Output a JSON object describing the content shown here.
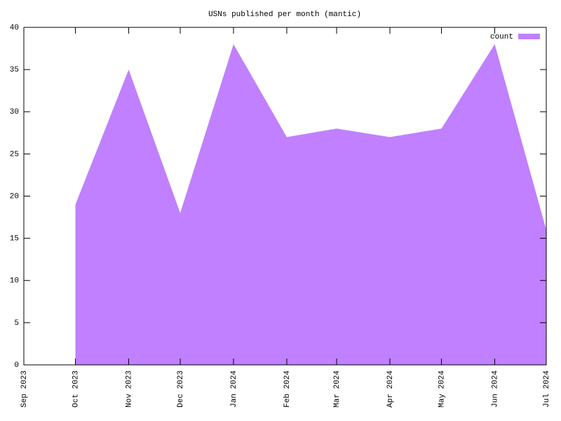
{
  "chart_data": {
    "type": "area",
    "title": "USNs published per month (mantic)",
    "x": [
      "2023-10",
      "2023-11",
      "2023-12",
      "2024-01",
      "2024-02",
      "2024-03",
      "2024-04",
      "2024-05",
      "2024-06",
      "2024-07"
    ],
    "series": [
      {
        "name": "count",
        "color": "#c080ff",
        "values": [
          19,
          35,
          18,
          38,
          27,
          28,
          27,
          28,
          38,
          16
        ]
      }
    ],
    "xlim": [
      "2023-09",
      "2024-07"
    ],
    "xticks": [
      {
        "value": "2023-09",
        "label": "Sep 2023"
      },
      {
        "value": "2023-10",
        "label": "Oct 2023"
      },
      {
        "value": "2023-11",
        "label": "Nov 2023"
      },
      {
        "value": "2023-12",
        "label": "Dec 2023"
      },
      {
        "value": "2024-01",
        "label": "Jan 2024"
      },
      {
        "value": "2024-02",
        "label": "Feb 2024"
      },
      {
        "value": "2024-03",
        "label": "Mar 2024"
      },
      {
        "value": "2024-04",
        "label": "Apr 2024"
      },
      {
        "value": "2024-05",
        "label": "May 2024"
      },
      {
        "value": "2024-06",
        "label": "Jun 2024"
      },
      {
        "value": "2024-07",
        "label": "Jul 2024"
      }
    ],
    "ylim": [
      0,
      40
    ],
    "yticks": [
      0,
      5,
      10,
      15,
      20,
      25,
      30,
      35,
      40
    ],
    "legend": "top-right"
  }
}
